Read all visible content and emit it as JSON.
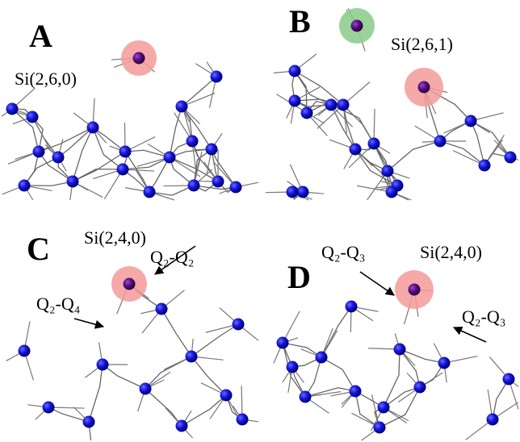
{
  "panels": [
    {
      "label": "A",
      "annotations": [
        "Si(2,6,0)"
      ]
    },
    {
      "label": "B",
      "annotations": [
        "Si(2,6,1)"
      ]
    },
    {
      "label": "C",
      "annotations": [
        "Si(2,4,0)",
        "Q₂-Q₂",
        "Q₂-Q₄"
      ]
    },
    {
      "label": "D",
      "annotations": [
        "Q₂-Q₃",
        "Si(2,4,0)",
        "Q₂-Q₃"
      ]
    }
  ]
}
